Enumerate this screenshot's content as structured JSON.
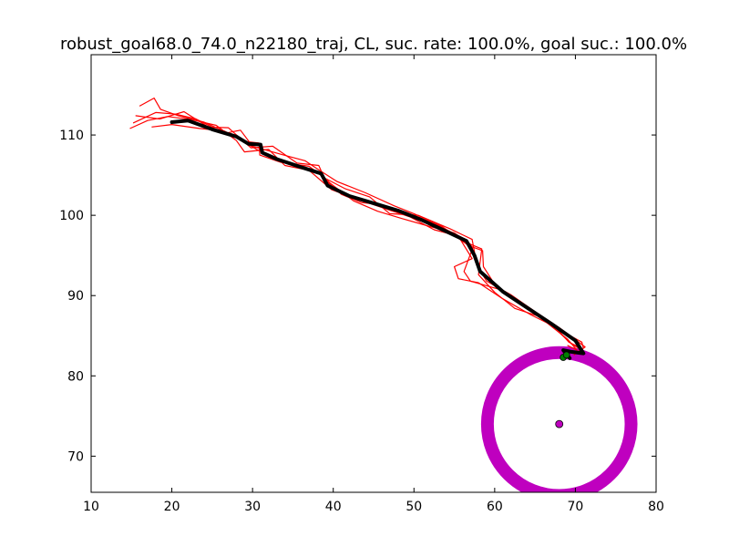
{
  "chart_data": {
    "type": "line",
    "title": "robust_goal68.0_74.0_n22180_traj, CL, suc. rate: 100.0%, goal suc.: 100.0%",
    "xlabel": "",
    "ylabel": "",
    "xlim": [
      10,
      80
    ],
    "ylim": [
      65.5,
      120
    ],
    "xticks": [
      10,
      20,
      30,
      40,
      50,
      60,
      70,
      80
    ],
    "yticks": [
      70,
      80,
      90,
      100,
      110
    ],
    "grid": false,
    "colors": {
      "trajectories": "#ff0000",
      "mean_trajectory": "#000000",
      "goal_ring": "#bf00bf",
      "goal_center": "#bf00bf",
      "end_markers": "#008000"
    },
    "goal": {
      "x": 68.0,
      "y": 74.0,
      "ring_radius": 8.9
    },
    "end_points": [
      {
        "x": 68.5,
        "y": 82.3
      },
      {
        "x": 68.9,
        "y": 82.6
      }
    ],
    "series": [
      {
        "values": [
          [
            20.0,
            111.6
          ],
          [
            22.0,
            111.8
          ],
          [
            25.0,
            110.7
          ],
          [
            28.0,
            109.8
          ],
          [
            29.5,
            108.9
          ],
          [
            31.0,
            108.8
          ],
          [
            31.2,
            107.8
          ],
          [
            33.0,
            107.0
          ],
          [
            36.0,
            106.0
          ],
          [
            38.5,
            105.2
          ],
          [
            39.3,
            103.7
          ],
          [
            42.0,
            102.4
          ],
          [
            45.0,
            101.5
          ],
          [
            48.0,
            100.6
          ],
          [
            51.0,
            99.4
          ],
          [
            54.0,
            98.0
          ],
          [
            56.5,
            96.8
          ],
          [
            57.5,
            95.0
          ],
          [
            58.2,
            93.0
          ],
          [
            61.0,
            90.5
          ],
          [
            64.0,
            88.5
          ],
          [
            67.0,
            86.5
          ],
          [
            70.0,
            84.4
          ],
          [
            71.0,
            82.8
          ],
          [
            69.5,
            83.0
          ],
          [
            68.5,
            83.2
          ],
          [
            69.3,
            82.2
          ]
        ]
      },
      {
        "values": [
          [
            14.8,
            110.8
          ],
          [
            17.0,
            111.8
          ],
          [
            19.5,
            112.3
          ],
          [
            22.5,
            111.9
          ],
          [
            25.5,
            111.2
          ],
          [
            28.0,
            109.3
          ],
          [
            29.0,
            107.9
          ],
          [
            32.0,
            108.2
          ],
          [
            34.0,
            106.2
          ],
          [
            37.0,
            105.6
          ],
          [
            39.8,
            103.2
          ],
          [
            43.0,
            102.0
          ],
          [
            46.5,
            100.8
          ],
          [
            49.5,
            99.8
          ],
          [
            52.5,
            98.2
          ],
          [
            55.5,
            97.4
          ],
          [
            57.2,
            94.6
          ],
          [
            55.0,
            93.6
          ],
          [
            55.5,
            92.1
          ],
          [
            58.0,
            91.6
          ],
          [
            61.0,
            89.6
          ],
          [
            64.5,
            87.6
          ],
          [
            67.5,
            86.1
          ],
          [
            69.2,
            84.2
          ],
          [
            70.4,
            83.6
          ],
          [
            70.6,
            82.8
          ]
        ]
      },
      {
        "values": [
          [
            15.2,
            111.5
          ],
          [
            18.0,
            112.8
          ],
          [
            20.5,
            112.6
          ],
          [
            23.0,
            112.0
          ],
          [
            26.5,
            110.2
          ],
          [
            28.5,
            110.6
          ],
          [
            30.0,
            108.6
          ],
          [
            33.5,
            107.6
          ],
          [
            36.5,
            106.8
          ],
          [
            38.0,
            105.8
          ],
          [
            40.5,
            104.2
          ],
          [
            44.0,
            102.8
          ],
          [
            47.5,
            101.2
          ],
          [
            50.0,
            100.2
          ],
          [
            53.5,
            98.6
          ],
          [
            56.8,
            96.2
          ],
          [
            58.5,
            95.6
          ],
          [
            58.6,
            93.6
          ],
          [
            60.0,
            91.4
          ],
          [
            63.0,
            89.2
          ],
          [
            66.0,
            87.2
          ],
          [
            68.3,
            85.6
          ],
          [
            70.8,
            84.2
          ],
          [
            71.0,
            83.4
          ]
        ]
      },
      {
        "values": [
          [
            16.0,
            113.6
          ],
          [
            17.8,
            114.6
          ],
          [
            18.6,
            113.2
          ],
          [
            20.8,
            112.4
          ],
          [
            24.0,
            111.6
          ],
          [
            27.5,
            110.0
          ],
          [
            30.5,
            108.2
          ],
          [
            34.5,
            106.4
          ],
          [
            38.6,
            105.0
          ],
          [
            39.6,
            104.0
          ],
          [
            42.5,
            101.8
          ],
          [
            45.5,
            100.5
          ],
          [
            48.5,
            99.6
          ],
          [
            52.0,
            98.6
          ],
          [
            55.0,
            97.8
          ],
          [
            57.0,
            96.4
          ],
          [
            58.4,
            95.8
          ],
          [
            58.0,
            92.6
          ],
          [
            60.0,
            90.4
          ],
          [
            62.5,
            88.4
          ],
          [
            65.5,
            87.4
          ],
          [
            68.0,
            85.4
          ],
          [
            69.5,
            84.0
          ],
          [
            70.8,
            83.2
          ]
        ]
      },
      {
        "values": [
          [
            17.5,
            111.0
          ],
          [
            20.0,
            111.3
          ],
          [
            23.5,
            110.8
          ],
          [
            26.5,
            110.5
          ],
          [
            29.0,
            109.2
          ],
          [
            30.8,
            109.0
          ],
          [
            30.9,
            107.5
          ],
          [
            33.5,
            106.6
          ],
          [
            37.0,
            106.1
          ],
          [
            39.0,
            104.6
          ],
          [
            41.5,
            103.3
          ],
          [
            44.5,
            102.3
          ],
          [
            47.0,
            100.2
          ],
          [
            50.5,
            100.0
          ],
          [
            54.5,
            98.3
          ],
          [
            57.2,
            97.0
          ],
          [
            57.8,
            93.8
          ],
          [
            59.0,
            91.8
          ],
          [
            62.0,
            90.1
          ],
          [
            65.0,
            88.0
          ],
          [
            68.0,
            86.0
          ],
          [
            69.6,
            84.8
          ],
          [
            71.2,
            83.6
          ],
          [
            69.8,
            82.6
          ]
        ]
      },
      {
        "values": [
          [
            15.5,
            112.4
          ],
          [
            18.5,
            112.0
          ],
          [
            21.5,
            112.9
          ],
          [
            24.5,
            111.0
          ],
          [
            27.0,
            110.9
          ],
          [
            29.8,
            108.4
          ],
          [
            32.5,
            108.6
          ],
          [
            35.5,
            106.5
          ],
          [
            38.2,
            106.2
          ],
          [
            39.0,
            104.4
          ],
          [
            41.0,
            102.6
          ],
          [
            43.5,
            101.6
          ],
          [
            46.0,
            101.3
          ],
          [
            49.0,
            100.4
          ],
          [
            52.5,
            99.0
          ],
          [
            56.0,
            97.2
          ],
          [
            57.3,
            96.0
          ],
          [
            56.2,
            93.0
          ],
          [
            57.0,
            91.8
          ],
          [
            60.5,
            90.8
          ],
          [
            63.5,
            88.8
          ],
          [
            66.5,
            86.6
          ],
          [
            69.0,
            84.6
          ],
          [
            70.2,
            83.2
          ],
          [
            69.0,
            83.8
          ]
        ]
      }
    ]
  }
}
